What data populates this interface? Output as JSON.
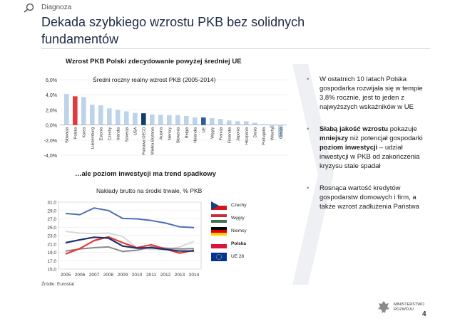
{
  "header": {
    "section": "Diagnoza",
    "title": "Dekada szybkiego wzrostu PKB bez solidnych fundamentów"
  },
  "chart1": {
    "heading": "Wzrost PKB Polski zdecydowanie powyżej średniej UE",
    "subtitle": "Średni roczny realny wzrost PKB (2005-2014)"
  },
  "chart2": {
    "heading": "…ale poziom inwestycji ma trend spadkowy",
    "subtitle": "Nakłady brutto na środki trwałe, % PKB"
  },
  "chart_data": [
    {
      "type": "bar",
      "title": "Średni roczny realny wzrost PKB (2005-2014)",
      "categories": [
        "Słowacja",
        "Polska",
        "Korea",
        "Luksemburg",
        "Estonia",
        "Czechy",
        "Irlandia",
        "Szwecja",
        "USA",
        "Państwa OECD",
        "Wielka Brytania",
        "Austria",
        "Niemcy",
        "Słowenia",
        "Belgia",
        "Holandia",
        "UE",
        "Węgry",
        "Francja",
        "Finlandia",
        "Japonia",
        "Hiszpania",
        "Dania",
        "Portugalia",
        "Włochy",
        "Grecja"
      ],
      "values": [
        4.1,
        3.8,
        3.7,
        2.7,
        2.6,
        2.2,
        2.0,
        1.8,
        1.6,
        1.55,
        1.4,
        1.35,
        1.3,
        1.3,
        1.2,
        1.0,
        1.0,
        0.9,
        0.8,
        0.6,
        0.5,
        0.5,
        0.3,
        0.1,
        -0.4,
        -1.6
      ],
      "highlight": {
        "Polska": "#e03a3e",
        "Państwa OECD": "#123c6b",
        "UE": "#2f5d96"
      },
      "bar_color": "#bcd3ea",
      "ylim": [
        -4,
        6
      ],
      "yticks": [
        "-4,0%",
        "-2,0%",
        "0,0%",
        "2,0%",
        "4,0%",
        "6,0%"
      ],
      "ytick_values": [
        -4,
        -2,
        0,
        2,
        4,
        6
      ]
    },
    {
      "type": "line",
      "title": "Nakłady brutto na środki trwałe, % PKB",
      "x": [
        "2005",
        "2006",
        "2007",
        "2008",
        "2009",
        "2010",
        "2011",
        "2012",
        "2013",
        "2014"
      ],
      "ylim": [
        15,
        31
      ],
      "yticks": [
        "15,0",
        "17,0",
        "19,0",
        "21,0",
        "23,0",
        "25,0",
        "27,0",
        "29,0",
        "31,0"
      ],
      "ytick_values": [
        15,
        17,
        19,
        21,
        23,
        25,
        27,
        29,
        31
      ],
      "series": [
        {
          "name": "Czechy",
          "color": "#4a6fb0",
          "values": [
            28.3,
            28.0,
            29.6,
            29.0,
            27.1,
            27.0,
            26.6,
            26.0,
            25.1,
            24.9
          ]
        },
        {
          "name": "Węgry",
          "color": "#d8d8d8",
          "values": [
            24.0,
            23.6,
            23.5,
            23.6,
            22.8,
            20.0,
            19.7,
            19.6,
            20.3,
            21.6
          ]
        },
        {
          "name": "Niemcy",
          "color": "#888888",
          "values": [
            19.3,
            19.8,
            20.1,
            20.3,
            19.2,
            19.5,
            20.3,
            20.0,
            19.8,
            19.9
          ]
        },
        {
          "name": "Polska",
          "color": "#e23b3b",
          "values": [
            18.6,
            19.9,
            21.8,
            22.7,
            21.3,
            20.1,
            20.8,
            19.8,
            18.8,
            19.5
          ]
        },
        {
          "name": "UE 28",
          "color": "#1f2f6e",
          "values": [
            21.3,
            22.0,
            22.6,
            22.4,
            20.5,
            20.0,
            20.1,
            19.7,
            19.3,
            19.3
          ]
        }
      ]
    }
  ],
  "bullets": [
    {
      "parts": [
        {
          "text": "W ostatnich 10 latach Polska gospodarka rozwijała się w tempie 3,8% rocznie, jest to jeden z najwyższych wskaźników w UE",
          "bold": false
        }
      ]
    },
    {
      "parts": [
        {
          "text": "Słabą jakość wzrostu",
          "bold": true
        },
        {
          "text": " pokazuje ",
          "bold": false
        },
        {
          "text": "mniejszy",
          "bold": true
        },
        {
          "text": " niż potencjał gospodarki ",
          "bold": false
        },
        {
          "text": "poziom inwestycji",
          "bold": true
        },
        {
          "text": " – udział inwestycji w PKB od zakończenia kryzysu stale spadał",
          "bold": false
        }
      ]
    },
    {
      "parts": [
        {
          "text": "Rosnąca wartość kredytów gospodarstw domowych i firm, a także wzrost zadłużenia Państwa",
          "bold": false
        }
      ]
    }
  ],
  "footer": {
    "source": "Źródło: Eurostat",
    "ministry_line1": "MINISTERSTWO",
    "ministry_line2": "ROZWOJU",
    "page_number": "4"
  },
  "colors": {
    "title": "#1f2a44",
    "accent_red": "#e03a3e",
    "eu_blue": "#1f2f6e"
  },
  "icons": [
    "search-icon",
    "czech-flag-icon",
    "hungary-flag-icon",
    "germany-flag-icon",
    "poland-flag-icon",
    "eu-flag-icon",
    "eagle-emblem-icon"
  ]
}
